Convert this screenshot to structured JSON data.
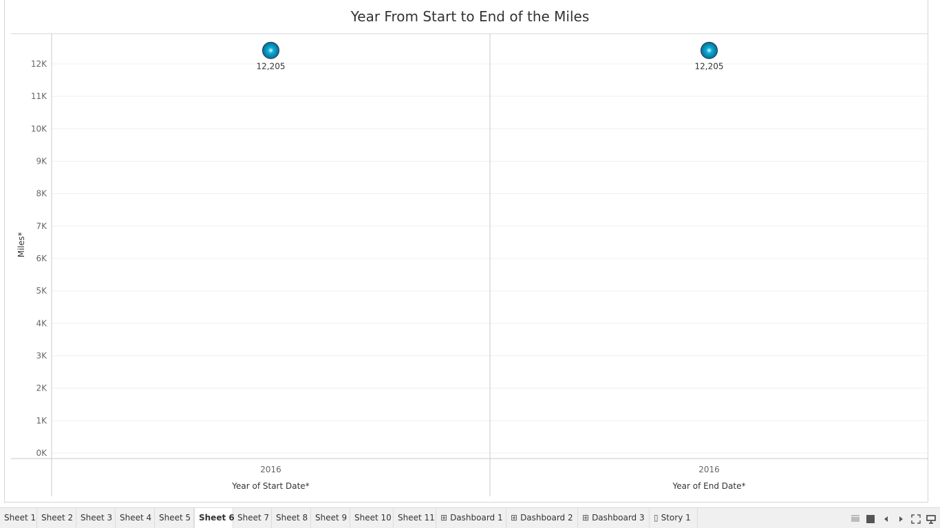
{
  "title": "Year From Start to End of the Miles",
  "chart_data": {
    "type": "scatter",
    "panes": [
      {
        "xlabel": "Year of Start Date*",
        "category": "2016",
        "value": 12205,
        "label": "12,205"
      },
      {
        "xlabel": "Year of End Date*",
        "category": "2016",
        "value": 12205,
        "label": "12,205"
      }
    ],
    "ylabel": "Miles*",
    "ylim": [
      0,
      12600
    ],
    "yticks": [
      {
        "value": 0,
        "label": "0K"
      },
      {
        "value": 1000,
        "label": "1K"
      },
      {
        "value": 2000,
        "label": "2K"
      },
      {
        "value": 3000,
        "label": "3K"
      },
      {
        "value": 4000,
        "label": "4K"
      },
      {
        "value": 5000,
        "label": "5K"
      },
      {
        "value": 6000,
        "label": "6K"
      },
      {
        "value": 7000,
        "label": "7K"
      },
      {
        "value": 8000,
        "label": "8K"
      },
      {
        "value": 9000,
        "label": "9K"
      },
      {
        "value": 10000,
        "label": "10K"
      },
      {
        "value": 11000,
        "label": "11K"
      },
      {
        "value": 12000,
        "label": "12K"
      }
    ],
    "grid": true,
    "marker_color": "#0bb0d8"
  },
  "tabs": [
    {
      "label": "Sheet 1",
      "icon": ""
    },
    {
      "label": "Sheet 2",
      "icon": ""
    },
    {
      "label": "Sheet 3",
      "icon": ""
    },
    {
      "label": "Sheet 4",
      "icon": ""
    },
    {
      "label": "Sheet 5",
      "icon": ""
    },
    {
      "label": "Sheet 6",
      "icon": "",
      "active": true
    },
    {
      "label": "Sheet 7",
      "icon": ""
    },
    {
      "label": "Sheet 8",
      "icon": ""
    },
    {
      "label": "Sheet 9",
      "icon": ""
    },
    {
      "label": "Sheet 10",
      "icon": ""
    },
    {
      "label": "Sheet 11",
      "icon": ""
    },
    {
      "label": "Dashboard 1",
      "icon": "dashboard-icon"
    },
    {
      "label": "Dashboard 2",
      "icon": "dashboard-icon"
    },
    {
      "label": "Dashboard 3",
      "icon": "dashboard-icon"
    },
    {
      "label": "Story 1",
      "icon": "story-icon"
    }
  ],
  "controls": [
    "show-filmstrip-icon",
    "show-tabs-icon",
    "prev-sheet-icon",
    "next-sheet-icon",
    "fullscreen-icon",
    "presentation-mode-icon"
  ]
}
